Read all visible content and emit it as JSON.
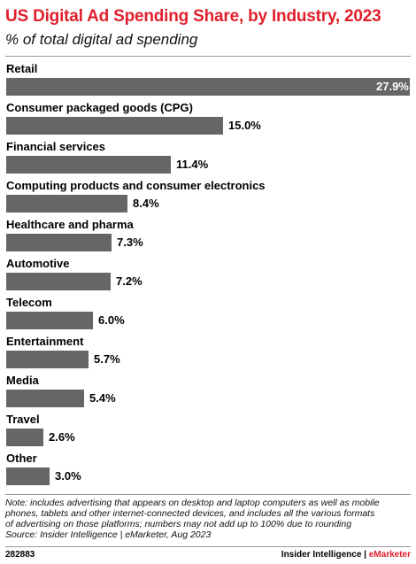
{
  "chart_data": {
    "type": "bar",
    "orientation": "horizontal",
    "title": "US Digital Ad Spending Share, by Industry, 2023",
    "subtitle": "% of total digital ad spending",
    "categories": [
      "Retail",
      "Consumer packaged goods (CPG)",
      "Financial services",
      "Computing products and consumer electronics",
      "Healthcare and pharma",
      "Automotive",
      "Telecom",
      "Entertainment",
      "Media",
      "Travel",
      "Other"
    ],
    "values": [
      27.9,
      15.0,
      11.4,
      8.4,
      7.3,
      7.2,
      6.0,
      5.7,
      5.4,
      2.6,
      3.0
    ],
    "value_labels": [
      "27.9%",
      "15.0%",
      "11.4%",
      "8.4%",
      "7.3%",
      "7.2%",
      "6.0%",
      "5.7%",
      "5.4%",
      "2.6%",
      "3.0%"
    ],
    "xlim": [
      0,
      27.9
    ],
    "grid": false,
    "bar_color": "#666666",
    "title_color": "#e0202c"
  },
  "note": {
    "line1": "Note: includes advertising that appears on desktop and laptop computers as well as mobile",
    "line2": "phones, tablets and other internet-connected devices, and includes all the various formats",
    "line3": "of advertising on those platforms; numbers may not add up to 100% due to rounding",
    "source": "Source: Insider Intelligence | eMarketer, Aug 2023"
  },
  "footer": {
    "chart_id": "282883",
    "brand_main": "Insider Intelligence | ",
    "brand_accent": "eMarketer"
  }
}
